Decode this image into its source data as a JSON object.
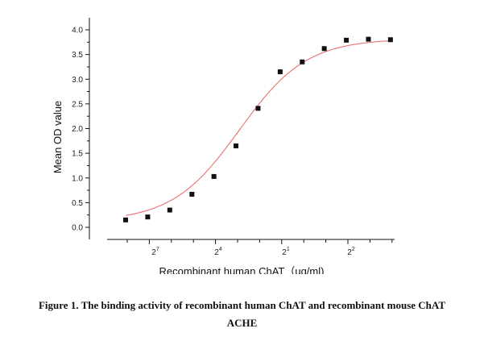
{
  "chart_data": {
    "type": "scatter",
    "xlabel": "Recombinant human ChAT（ug/ml)",
    "ylabel": "Mean OD value",
    "x_scale": "log2",
    "x_ticks": [
      {
        "base": "2",
        "exp": "7",
        "value": 0.0078125
      },
      {
        "base": "2",
        "exp": "4",
        "value": 0.0625
      },
      {
        "base": "2",
        "exp": "1",
        "value": 0.5
      },
      {
        "base": "2",
        "exp": "2",
        "value": 4
      }
    ],
    "y_ticks": [
      "0.0",
      "0.5",
      "1.0",
      "1.5",
      "2.0",
      "2.5",
      "3.0",
      "3.5",
      "4.0"
    ],
    "ylim": [
      0,
      4.0
    ],
    "x": [
      0.0039,
      0.0078,
      0.0156,
      0.0313,
      0.0625,
      0.125,
      0.25,
      0.5,
      1,
      2,
      4,
      8,
      16
    ],
    "y": [
      0.15,
      0.21,
      0.35,
      0.67,
      1.03,
      1.65,
      2.41,
      3.15,
      3.35,
      3.62,
      3.79,
      3.81,
      3.8
    ],
    "fit": "sigmoidal (4PL)",
    "marker_color": "#111111",
    "fit_color": "#e87070",
    "grid": false,
    "legend": "none"
  },
  "caption": {
    "line1": "Figure 1. The binding activity of recombinant human ChAT and recombinant mouse ChAT",
    "line2": "ACHE"
  }
}
